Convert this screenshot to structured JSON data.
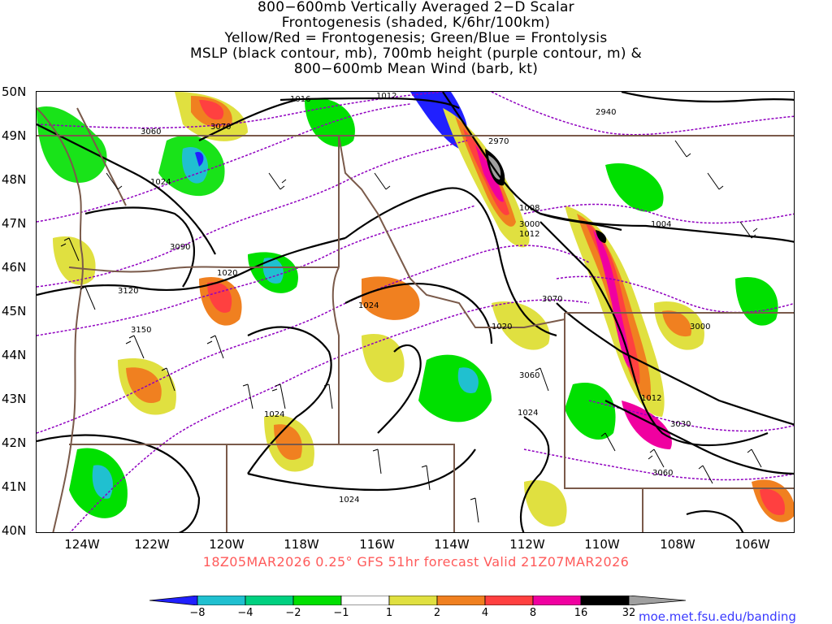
{
  "title": {
    "lines": [
      "800−600mb Vertically Averaged 2−D Scalar",
      "Frontogenesis (shaded, K/6hr/100km)",
      "Yellow/Red = Frontogenesis;  Green/Blue = Frontolysis",
      "MSLP (black contour, mb), 700mb height (purple contour, m) &",
      "800−600mb Mean Wind (barb, kt)"
    ]
  },
  "map": {
    "lat_labels": [
      "50N",
      "49N",
      "48N",
      "47N",
      "46N",
      "45N",
      "44N",
      "43N",
      "42N",
      "41N",
      "40N"
    ],
    "lon_labels": [
      "124W",
      "122W",
      "120W",
      "118W",
      "116W",
      "114W",
      "112W",
      "110W",
      "108W",
      "106W"
    ],
    "extent": {
      "lon_min": -125.2,
      "lon_max": -105.0,
      "lat_min": 40,
      "lat_max": 50
    },
    "mslp_contour_labels": [
      "1016",
      "1012",
      "1024",
      "1020",
      "1024",
      "1020",
      "1008",
      "1012",
      "1004",
      "1012",
      "1024",
      "1024",
      "1024"
    ],
    "height_contour_labels": [
      "3060",
      "3070",
      "2940",
      "2970",
      "3090",
      "3120",
      "3150",
      "3000",
      "3070",
      "3000",
      "3060",
      "3030",
      "3060"
    ],
    "colors": {
      "frontolysis_strong": "#2020ff",
      "frontolysis_mid": "#20c0d0",
      "frontolysis_weak": "#00d080",
      "frontolysis_light": "#00e000",
      "frontogenesis_light": "#e0e040",
      "frontogenesis_weak": "#f08020",
      "frontogenesis_mid": "#ff4040",
      "frontogenesis_strong": "#f000a0",
      "frontogenesis_extreme": "#000000",
      "frontogenesis_max": "#a0a0a0",
      "mslp_contour": "#000000",
      "height_contour": "#9000c0",
      "borders": "#7a5a4a"
    }
  },
  "valid_time": "18Z05MAR2026 0.25° GFS 51hr forecast Valid 21Z07MAR2026",
  "colorbar": {
    "labels": [
      "−8",
      "−4",
      "−2",
      "−1",
      "1",
      "2",
      "4",
      "8",
      "16",
      "32"
    ],
    "colors": [
      "#2020ff",
      "#20c0d0",
      "#00d080",
      "#00e000",
      "#ffffff",
      "#e0e040",
      "#f08020",
      "#ff4040",
      "#f000a0",
      "#000000",
      "#a0a0a0"
    ]
  },
  "credit": "moe.met.fsu.edu/banding"
}
